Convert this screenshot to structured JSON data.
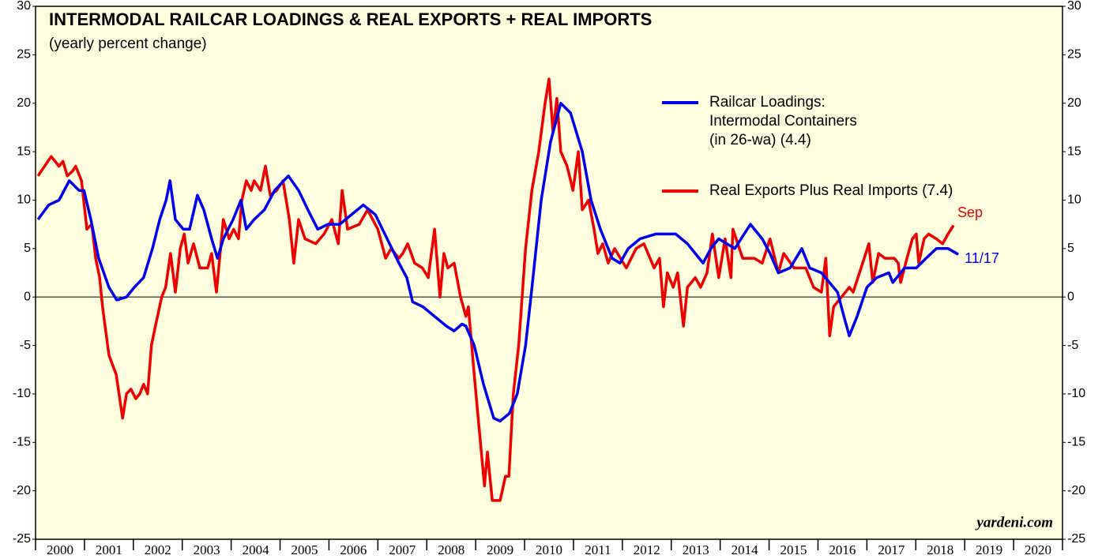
{
  "chart_data": {
    "type": "line",
    "title": "INTERMODAL RAILCAR LOADINGS & REAL EXPORTS + REAL IMPORTS",
    "subtitle": "(yearly percent change)",
    "watermark": "yardeni.com",
    "annotations": [
      {
        "text": "Sep",
        "series": 1
      },
      {
        "text": "11/17",
        "series": 0
      }
    ],
    "xlim": [
      2000,
      2021
    ],
    "xticks": [
      2000,
      2001,
      2002,
      2003,
      2004,
      2005,
      2006,
      2007,
      2008,
      2009,
      2010,
      2011,
      2012,
      2013,
      2014,
      2015,
      2016,
      2017,
      2018,
      2019,
      2020
    ],
    "ylim": [
      -25,
      30
    ],
    "yticks": [
      -25,
      -20,
      -15,
      -10,
      -5,
      0,
      5,
      10,
      15,
      20,
      25,
      30
    ],
    "y2lim": [
      -25,
      30
    ],
    "y2ticks": [
      -25,
      -20,
      -15,
      -10,
      -5,
      0,
      5,
      10,
      15,
      20,
      25,
      30
    ],
    "legend": "upper right",
    "series": [
      {
        "name": "Railcar Loadings:\nIntermodal Containers\n(in 26-wa) (4.4)",
        "color": "#0000ee",
        "x": [
          2000.05,
          2000.27,
          2000.48,
          2000.69,
          2000.89,
          2000.99,
          2001.13,
          2001.29,
          2001.5,
          2001.66,
          2001.86,
          2002.02,
          2002.21,
          2002.39,
          2002.54,
          2002.67,
          2002.75,
          2002.86,
          2003.02,
          2003.15,
          2003.31,
          2003.44,
          2003.6,
          2003.72,
          2003.84,
          2004.04,
          2004.2,
          2004.31,
          2004.47,
          2004.68,
          2004.89,
          2005.17,
          2005.38,
          2005.57,
          2005.77,
          2005.98,
          2006.22,
          2006.46,
          2006.7,
          2006.95,
          2007.19,
          2007.43,
          2007.59,
          2007.71,
          2007.92,
          2008.16,
          2008.4,
          2008.56,
          2008.72,
          2008.8,
          2008.97,
          2009.16,
          2009.37,
          2009.5,
          2009.69,
          2009.85,
          2010.02,
          2010.13,
          2010.34,
          2010.53,
          2010.74,
          2010.94,
          2011.18,
          2011.36,
          2011.55,
          2011.79,
          2011.95,
          2012.12,
          2012.36,
          2012.68,
          2013.09,
          2013.33,
          2013.49,
          2013.65,
          2013.81,
          2013.97,
          2014.3,
          2014.62,
          2014.86,
          2015.02,
          2015.19,
          2015.43,
          2015.67,
          2015.83,
          2016.07,
          2016.4,
          2016.53,
          2016.64,
          2016.8,
          2017.0,
          2017.2,
          2017.45,
          2017.53,
          2017.77,
          2018.01,
          2018.21,
          2018.42,
          2018.66,
          2018.87
        ],
        "values": [
          8,
          9.5,
          10,
          12,
          11,
          11,
          8,
          4,
          1,
          -0.3,
          0,
          1,
          2,
          5,
          8,
          10,
          12,
          8,
          7,
          7,
          10.5,
          9,
          6,
          4,
          6,
          8,
          10,
          7,
          8,
          9,
          11,
          12.5,
          11,
          9,
          7,
          7.5,
          7.5,
          8.5,
          9.5,
          8.5,
          6,
          3.5,
          2,
          -0.5,
          -1,
          -2,
          -3,
          -3.5,
          -2.8,
          -3,
          -5,
          -9,
          -12.5,
          -12.8,
          -12,
          -10,
          -5,
          0,
          10,
          16,
          20,
          19,
          15,
          10,
          7,
          4,
          3.5,
          5,
          6,
          6.5,
          6.5,
          5.5,
          4.5,
          3.5,
          5,
          6,
          5,
          7.5,
          6,
          4.5,
          2.5,
          3,
          5,
          3,
          2.5,
          0.5,
          -2,
          -4,
          -2,
          1,
          2,
          2.5,
          1.5,
          3,
          3,
          4,
          5,
          5,
          4.4
        ]
      },
      {
        "name": "Real Exports Plus Real Imports (7.4)",
        "color": "#ee0000",
        "x": [
          2000.05,
          2000.32,
          2000.48,
          2000.56,
          2000.65,
          2000.76,
          2000.82,
          2000.94,
          2001.05,
          2001.15,
          2001.23,
          2001.31,
          2001.37,
          2001.5,
          2001.65,
          2001.78,
          2001.86,
          2001.95,
          2002.05,
          2002.13,
          2002.21,
          2002.29,
          2002.37,
          2002.45,
          2002.58,
          2002.66,
          2002.76,
          2002.86,
          2002.96,
          2003.04,
          2003.12,
          2003.23,
          2003.36,
          2003.52,
          2003.6,
          2003.7,
          2003.84,
          2003.96,
          2004.05,
          2004.15,
          2004.22,
          2004.31,
          2004.41,
          2004.47,
          2004.6,
          2004.7,
          2004.8,
          2004.93,
          2005.06,
          2005.19,
          2005.28,
          2005.38,
          2005.51,
          2005.73,
          2005.9,
          2006.06,
          2006.19,
          2006.27,
          2006.38,
          2006.62,
          2006.79,
          2007.0,
          2007.16,
          2007.27,
          2007.43,
          2007.51,
          2007.61,
          2007.75,
          2007.91,
          2008.03,
          2008.16,
          2008.27,
          2008.35,
          2008.43,
          2008.56,
          2008.69,
          2008.8,
          2008.85,
          2008.97,
          2009.06,
          2009.18,
          2009.24,
          2009.34,
          2009.5,
          2009.61,
          2009.68,
          2009.77,
          2009.88,
          2010.02,
          2010.15,
          2010.29,
          2010.42,
          2010.5,
          2010.58,
          2010.66,
          2010.74,
          2010.87,
          2010.99,
          2011.1,
          2011.18,
          2011.31,
          2011.42,
          2011.5,
          2011.6,
          2011.71,
          2011.84,
          2012.08,
          2012.28,
          2012.44,
          2012.65,
          2012.76,
          2012.84,
          2012.92,
          2013.04,
          2013.13,
          2013.25,
          2013.33,
          2013.49,
          2013.6,
          2013.73,
          2013.84,
          2013.97,
          2014.1,
          2014.22,
          2014.26,
          2014.46,
          2014.7,
          2014.86,
          2015.02,
          2015.19,
          2015.3,
          2015.51,
          2015.75,
          2015.91,
          2016.07,
          2016.16,
          2016.24,
          2016.32,
          2016.48,
          2016.64,
          2016.72,
          2016.88,
          2017.04,
          2017.12,
          2017.24,
          2017.37,
          2017.56,
          2017.64,
          2017.69,
          2017.82,
          2017.93,
          2018.01,
          2018.06,
          2018.17,
          2018.26,
          2018.42,
          2018.55,
          2018.66,
          2018.77
        ],
        "values": [
          12.5,
          14.5,
          13.5,
          14,
          12.5,
          13,
          13.5,
          12,
          7,
          7.5,
          4,
          2,
          -1,
          -6,
          -8,
          -12.5,
          -10,
          -9.5,
          -10.5,
          -10,
          -9,
          -10,
          -5,
          -3,
          0,
          1,
          4.5,
          0.5,
          5,
          6.5,
          3.5,
          5.5,
          3,
          3,
          4.5,
          0.5,
          8,
          6,
          7,
          6,
          10,
          12,
          11,
          12,
          11,
          13.5,
          10.5,
          11,
          12,
          8,
          3.5,
          8,
          6,
          5.5,
          6.5,
          8,
          5.5,
          11,
          7,
          7.5,
          9,
          7,
          4,
          5,
          4,
          4.5,
          5.5,
          3.5,
          3,
          2,
          7,
          0,
          4.5,
          3,
          3.5,
          0,
          -2,
          -1,
          -8,
          -13,
          -19.5,
          -16,
          -21,
          -21,
          -18.5,
          -18.5,
          -10,
          -5,
          5,
          11,
          15,
          20,
          22.5,
          17,
          20.5,
          15,
          13.5,
          11,
          15,
          9,
          10,
          7,
          4.5,
          5.5,
          3.5,
          5,
          3,
          5,
          5.5,
          3,
          4,
          -1,
          2.5,
          1,
          2.5,
          -3,
          1,
          2,
          1,
          2.5,
          6.5,
          2,
          6,
          2,
          7,
          4,
          4,
          3.5,
          6,
          2.5,
          4.5,
          3,
          3,
          1,
          0.5,
          4,
          -4,
          -1,
          0,
          1,
          0.5,
          3,
          5.5,
          1.5,
          4.5,
          4,
          4,
          3.5,
          1.5,
          4,
          6,
          6.5,
          3.5,
          6,
          6.5,
          6,
          5.5,
          6.5,
          7.4
        ]
      }
    ]
  }
}
